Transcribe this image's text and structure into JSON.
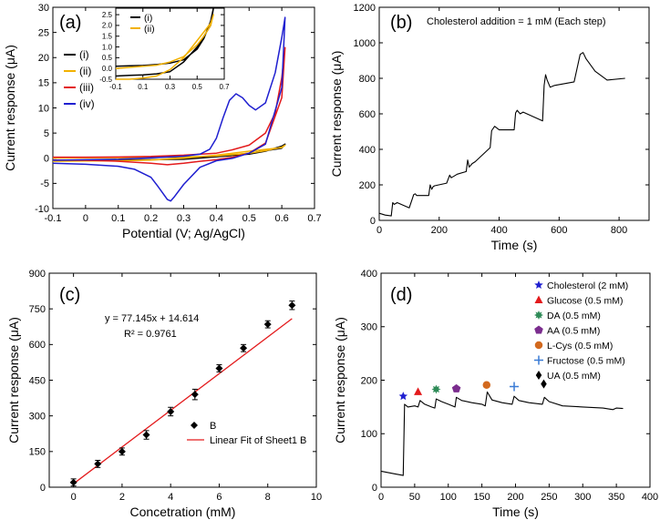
{
  "figure": {
    "panels": [
      {
        "id": "a",
        "label": "(a)"
      },
      {
        "id": "b",
        "label": "(b)"
      },
      {
        "id": "c",
        "label": "(c)"
      },
      {
        "id": "d",
        "label": "(d)"
      }
    ]
  },
  "chart_data": [
    {
      "panel": "a",
      "type": "line",
      "title": "",
      "xlabel": "Potential (V; Ag/AgCl)",
      "ylabel": "Current response (μA)",
      "xlim": [
        -0.1,
        0.7
      ],
      "ylim": [
        -10,
        30
      ],
      "xticks": [
        -0.1,
        0,
        0.1,
        0.2,
        0.3,
        0.4,
        0.5,
        0.6,
        0.7
      ],
      "yticks": [
        -10,
        -5,
        0,
        5,
        10,
        15,
        20,
        25,
        30
      ],
      "legend_position": "left",
      "series": [
        {
          "name": "(i)",
          "color": "#000000",
          "x": [
            -0.1,
            0,
            0.1,
            0.2,
            0.3,
            0.4,
            0.5,
            0.55,
            0.6,
            0.61,
            0.6,
            0.5,
            0.4,
            0.3,
            0.2,
            0.1,
            0,
            -0.1
          ],
          "y": [
            0.1,
            0.1,
            0.12,
            0.15,
            0.2,
            0.3,
            0.8,
            1.4,
            2.4,
            2.8,
            2.0,
            1.0,
            0.3,
            -0.2,
            -0.3,
            -0.35,
            -0.4,
            -0.45
          ]
        },
        {
          "name": "(ii)",
          "color": "#f2b100",
          "x": [
            -0.1,
            0,
            0.1,
            0.2,
            0.3,
            0.4,
            0.5,
            0.55,
            0.6,
            0.61,
            0.6,
            0.5,
            0.4,
            0.3,
            0.2,
            0.1,
            0,
            -0.1
          ],
          "y": [
            0.05,
            0.07,
            0.1,
            0.15,
            0.25,
            0.45,
            1.0,
            1.5,
            2.2,
            2.6,
            2.1,
            1.4,
            0.6,
            0.0,
            -0.35,
            -0.5,
            -0.55,
            -0.6
          ]
        },
        {
          "name": "(iii)",
          "color": "#e31a1c",
          "x": [
            -0.1,
            0,
            0.1,
            0.2,
            0.3,
            0.4,
            0.45,
            0.5,
            0.55,
            0.58,
            0.6,
            0.61,
            0.6,
            0.55,
            0.5,
            0.45,
            0.4,
            0.35,
            0.3,
            0.25,
            0.2,
            0.1,
            0,
            -0.1
          ],
          "y": [
            0.2,
            0.2,
            0.25,
            0.35,
            0.6,
            1.0,
            1.7,
            2.6,
            5.0,
            9.0,
            16.0,
            22.0,
            12.0,
            3.0,
            1.0,
            0.2,
            -0.3,
            -0.6,
            -1.0,
            -1.3,
            -1.0,
            -0.6,
            -0.4,
            -0.35
          ]
        },
        {
          "name": "(iv)",
          "color": "#1f1fd0",
          "x": [
            -0.1,
            0,
            0.1,
            0.2,
            0.3,
            0.35,
            0.38,
            0.4,
            0.42,
            0.44,
            0.46,
            0.48,
            0.5,
            0.52,
            0.55,
            0.58,
            0.6,
            0.61,
            0.6,
            0.55,
            0.5,
            0.45,
            0.4,
            0.35,
            0.3,
            0.27,
            0.26,
            0.25,
            0.22,
            0.2,
            0.15,
            0.1,
            0,
            -0.1
          ],
          "y": [
            -0.4,
            -0.3,
            -0.2,
            0.1,
            0.4,
            0.8,
            1.8,
            4.0,
            8.0,
            11.5,
            12.8,
            12.0,
            10.5,
            9.6,
            11.0,
            17.0,
            24.0,
            28.0,
            14.0,
            2.8,
            1.0,
            0.0,
            -0.5,
            -1.8,
            -5.2,
            -7.8,
            -8.5,
            -8.2,
            -5.5,
            -3.8,
            -2.2,
            -1.6,
            -1.2,
            -1.0
          ]
        }
      ]
    },
    {
      "panel": "a-inset",
      "type": "line",
      "xlim": [
        -0.1,
        0.7
      ],
      "ylim": [
        -0.5,
        2.8
      ],
      "xticks": [
        -0.1,
        0.1,
        0.3,
        0.5,
        0.7
      ],
      "xtick_labels": [
        "-0.1",
        "0.1",
        "0.3",
        "0.5",
        "0.7"
      ],
      "yticks": [
        -0.5,
        0.0,
        0.5,
        1.0,
        1.5,
        2.0,
        2.5
      ],
      "ytick_labels": [
        "-0.5",
        "0.0",
        "0.5",
        "1.0",
        "1.5",
        "2.0",
        "2.5"
      ],
      "legend_position": "top-left",
      "series": [
        {
          "name": "(i)",
          "color": "#000000",
          "x": [
            -0.1,
            0,
            0.1,
            0.2,
            0.3,
            0.4,
            0.5,
            0.55,
            0.6,
            0.62,
            0.6,
            0.5,
            0.4,
            0.3,
            0.2,
            0.1,
            0,
            -0.1
          ],
          "y": [
            0.1,
            0.12,
            0.14,
            0.18,
            0.25,
            0.4,
            0.9,
            1.4,
            2.2,
            2.8,
            2.0,
            1.0,
            0.3,
            -0.15,
            -0.25,
            -0.3,
            -0.32,
            -0.35
          ]
        },
        {
          "name": "(ii)",
          "color": "#f2b100",
          "x": [
            -0.1,
            0,
            0.1,
            0.2,
            0.3,
            0.4,
            0.5,
            0.55,
            0.6,
            0.62,
            0.6,
            0.5,
            0.4,
            0.3,
            0.2,
            0.1,
            0,
            -0.1
          ],
          "y": [
            0.0,
            0.05,
            0.1,
            0.15,
            0.3,
            0.55,
            1.1,
            1.5,
            2.0,
            2.5,
            2.1,
            1.3,
            0.5,
            -0.05,
            -0.35,
            -0.45,
            -0.5,
            -0.5
          ]
        }
      ]
    },
    {
      "panel": "b",
      "type": "line",
      "annotation": "Cholesterol addition = 1 mM (Each step)",
      "xlabel": "Time (s)",
      "ylabel": "Current response (μA)",
      "xlim": [
        0,
        900
      ],
      "ylim": [
        0,
        1200
      ],
      "xticks": [
        0,
        200,
        400,
        600,
        800
      ],
      "yticks": [
        0,
        200,
        400,
        600,
        800,
        1000,
        1200
      ],
      "series": [
        {
          "name": "current",
          "color": "#000000",
          "x": [
            0,
            20,
            40,
            45,
            50,
            55,
            60,
            100,
            110,
            115,
            120,
            125,
            165,
            170,
            175,
            180,
            185,
            225,
            235,
            240,
            250,
            260,
            290,
            295,
            300,
            310,
            320,
            370,
            375,
            385,
            400,
            450,
            455,
            460,
            470,
            480,
            545,
            550,
            555,
            560,
            570,
            585,
            650,
            670,
            680,
            690,
            720,
            760,
            820
          ],
          "y": [
            40,
            30,
            25,
            100,
            90,
            95,
            100,
            70,
            120,
            145,
            150,
            140,
            140,
            200,
            175,
            190,
            195,
            210,
            255,
            240,
            250,
            260,
            275,
            340,
            300,
            320,
            330,
            410,
            505,
            530,
            510,
            510,
            605,
            620,
            600,
            610,
            560,
            760,
            820,
            790,
            750,
            760,
            780,
            935,
            945,
            910,
            840,
            790,
            800
          ]
        }
      ]
    },
    {
      "panel": "c",
      "type": "scatter",
      "xlabel": "Concetration (mM)",
      "ylabel": "Current response (μA)",
      "xlim": [
        -1,
        10
      ],
      "ylim": [
        0,
        900
      ],
      "xticks": [
        0,
        2,
        4,
        6,
        8,
        10
      ],
      "yticks": [
        0,
        150,
        300,
        450,
        600,
        750,
        900
      ],
      "equation": "y = 77.145x + 14.614",
      "r_squared": "R² = 0.9761",
      "legend_position": "bottom-right",
      "series": [
        {
          "name": "B",
          "color": "#000000",
          "x": [
            0,
            1,
            2,
            3,
            4,
            5,
            6,
            7,
            8,
            9
          ],
          "y": [
            20,
            98,
            150,
            220,
            318,
            390,
            500,
            585,
            685,
            765
          ],
          "err": [
            15,
            15,
            15,
            18,
            18,
            22,
            15,
            15,
            15,
            18
          ]
        },
        {
          "name": "Linear Fit of Sheet1 B",
          "color": "#e31a1c",
          "fit": {
            "slope": 77.145,
            "intercept": 14.614,
            "x_range": [
              0,
              9
            ]
          }
        }
      ]
    },
    {
      "panel": "d",
      "type": "line",
      "xlabel": "Time (s)",
      "ylabel": "Current response (μA)",
      "xlim": [
        0,
        400
      ],
      "ylim": [
        0,
        400
      ],
      "xticks": [
        0,
        50,
        100,
        150,
        200,
        250,
        300,
        350,
        400
      ],
      "yticks": [
        0,
        100,
        200,
        300,
        400
      ],
      "legend_position": "top-right",
      "series": [
        {
          "name": "current",
          "color": "#000000",
          "x": [
            0,
            20,
            33,
            35,
            40,
            50,
            55,
            58,
            65,
            75,
            80,
            82,
            90,
            100,
            110,
            112,
            120,
            135,
            150,
            155,
            158,
            165,
            180,
            195,
            198,
            205,
            220,
            240,
            243,
            250,
            270,
            300,
            330,
            345,
            350,
            360
          ],
          "y": [
            30,
            25,
            22,
            155,
            150,
            152,
            150,
            162,
            155,
            150,
            148,
            165,
            160,
            155,
            150,
            168,
            162,
            158,
            155,
            152,
            178,
            163,
            158,
            155,
            170,
            162,
            158,
            155,
            168,
            160,
            152,
            150,
            148,
            145,
            148,
            147
          ]
        }
      ],
      "markers": [
        {
          "name": "Cholesterol (2 mM)",
          "x": 33,
          "y": 170,
          "symbol": "star",
          "color": "#1f1fd0"
        },
        {
          "name": "Glucose (0.5 mM)",
          "x": 55,
          "y": 178,
          "symbol": "triangle",
          "color": "#e31a1c"
        },
        {
          "name": "DA (0.5 mM)",
          "x": 82,
          "y": 183,
          "symbol": "starburst",
          "color": "#2e8b57"
        },
        {
          "name": "AA (0.5 mM)",
          "x": 112,
          "y": 184,
          "symbol": "pentagon",
          "color": "#7b2d8e"
        },
        {
          "name": "L-Cys (0.5 mM)",
          "x": 157,
          "y": 191,
          "symbol": "circle",
          "color": "#d2691e"
        },
        {
          "name": "Fructose (0.5 mM)",
          "x": 198,
          "y": 188,
          "symbol": "plus",
          "color": "#3a7bd5"
        },
        {
          "name": "UA (0.5 mM)",
          "x": 242,
          "y": 193,
          "symbol": "diamond",
          "color": "#000000"
        }
      ]
    }
  ]
}
